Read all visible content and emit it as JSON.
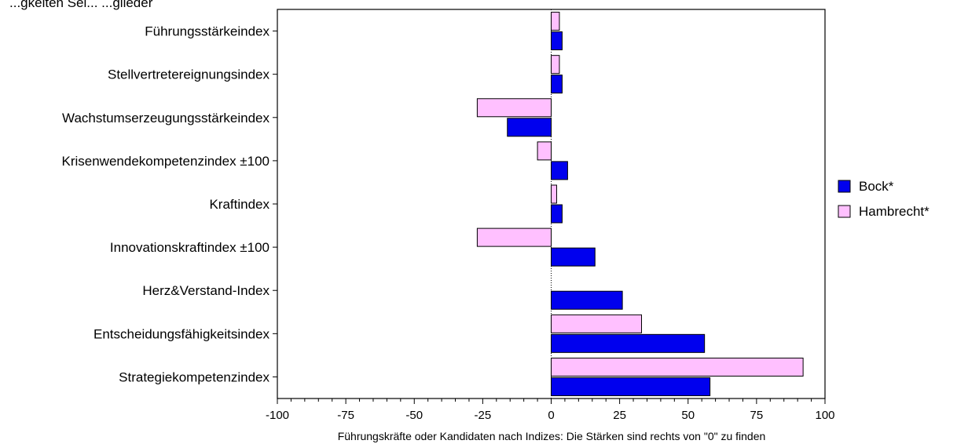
{
  "chart_data": {
    "type": "bar",
    "orientation": "horizontal",
    "title_fragment": "...gkeiten Sei... ...glieder",
    "categories": [
      "Führungsstärkeindex",
      "Stellvertretereignungsindex",
      "Wachstumserzeugungsstärkeindex",
      "Krisenwendekompetenzindex ±100",
      "Kraftindex",
      "Innovationskraftindex ±100",
      "Herz&Verstand-Index",
      "Entscheidungsfähigkeitsindex",
      "Strategiekompetenzindex"
    ],
    "series": [
      {
        "name": "Bock*",
        "color": "#0000ee",
        "values": [
          4,
          4,
          -16,
          6,
          4,
          16,
          26,
          56,
          58
        ]
      },
      {
        "name": "Hambrecht*",
        "color": "#ffc0ff",
        "values": [
          3,
          3,
          -27,
          -5,
          2,
          -27,
          0,
          33,
          92
        ]
      }
    ],
    "xlabel": "Führungskräfte oder Kandidaten nach Indizes: Die Stärken sind rechts von \"0\" zu finden",
    "xlim": [
      -100,
      100
    ],
    "xticks": [
      "-100",
      "-75",
      "-50",
      "-25",
      "0",
      "25",
      "50",
      "75",
      "100"
    ],
    "grid": false,
    "legend_position": "right"
  }
}
